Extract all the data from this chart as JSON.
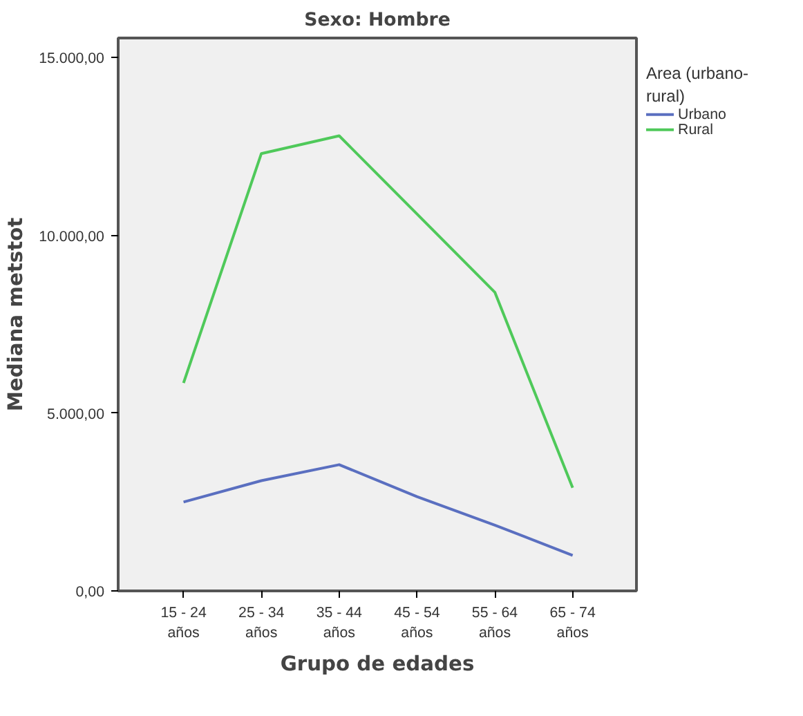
{
  "chart_data": {
    "type": "line",
    "title": "Sexo: Hombre",
    "xlabel": "Grupo de edades",
    "ylabel": "Mediana metstot",
    "legend_title": "Area (urbano-\nrural)",
    "categories": [
      "15 - 24\naños",
      "25 - 34\naños",
      "35 - 44\naños",
      "45 - 54\naños",
      "55 - 64\naños",
      "65 - 74\naños"
    ],
    "series": [
      {
        "name": "Urbano",
        "color": "#5a6fc0",
        "values": [
          2500,
          3100,
          3550,
          2650,
          1850,
          1000
        ]
      },
      {
        "name": "Rural",
        "color": "#4fc95a",
        "values": [
          5850,
          12300,
          12800,
          10600,
          8400,
          2900
        ]
      }
    ],
    "ylim": [
      0,
      15550
    ],
    "yticks": [
      {
        "value": 0,
        "label": "0,00"
      },
      {
        "value": 5000,
        "label": "5.000,00"
      },
      {
        "value": 10000,
        "label": "10.000,00"
      },
      {
        "value": 15000,
        "label": "15.000,00"
      }
    ],
    "legend": "right"
  }
}
